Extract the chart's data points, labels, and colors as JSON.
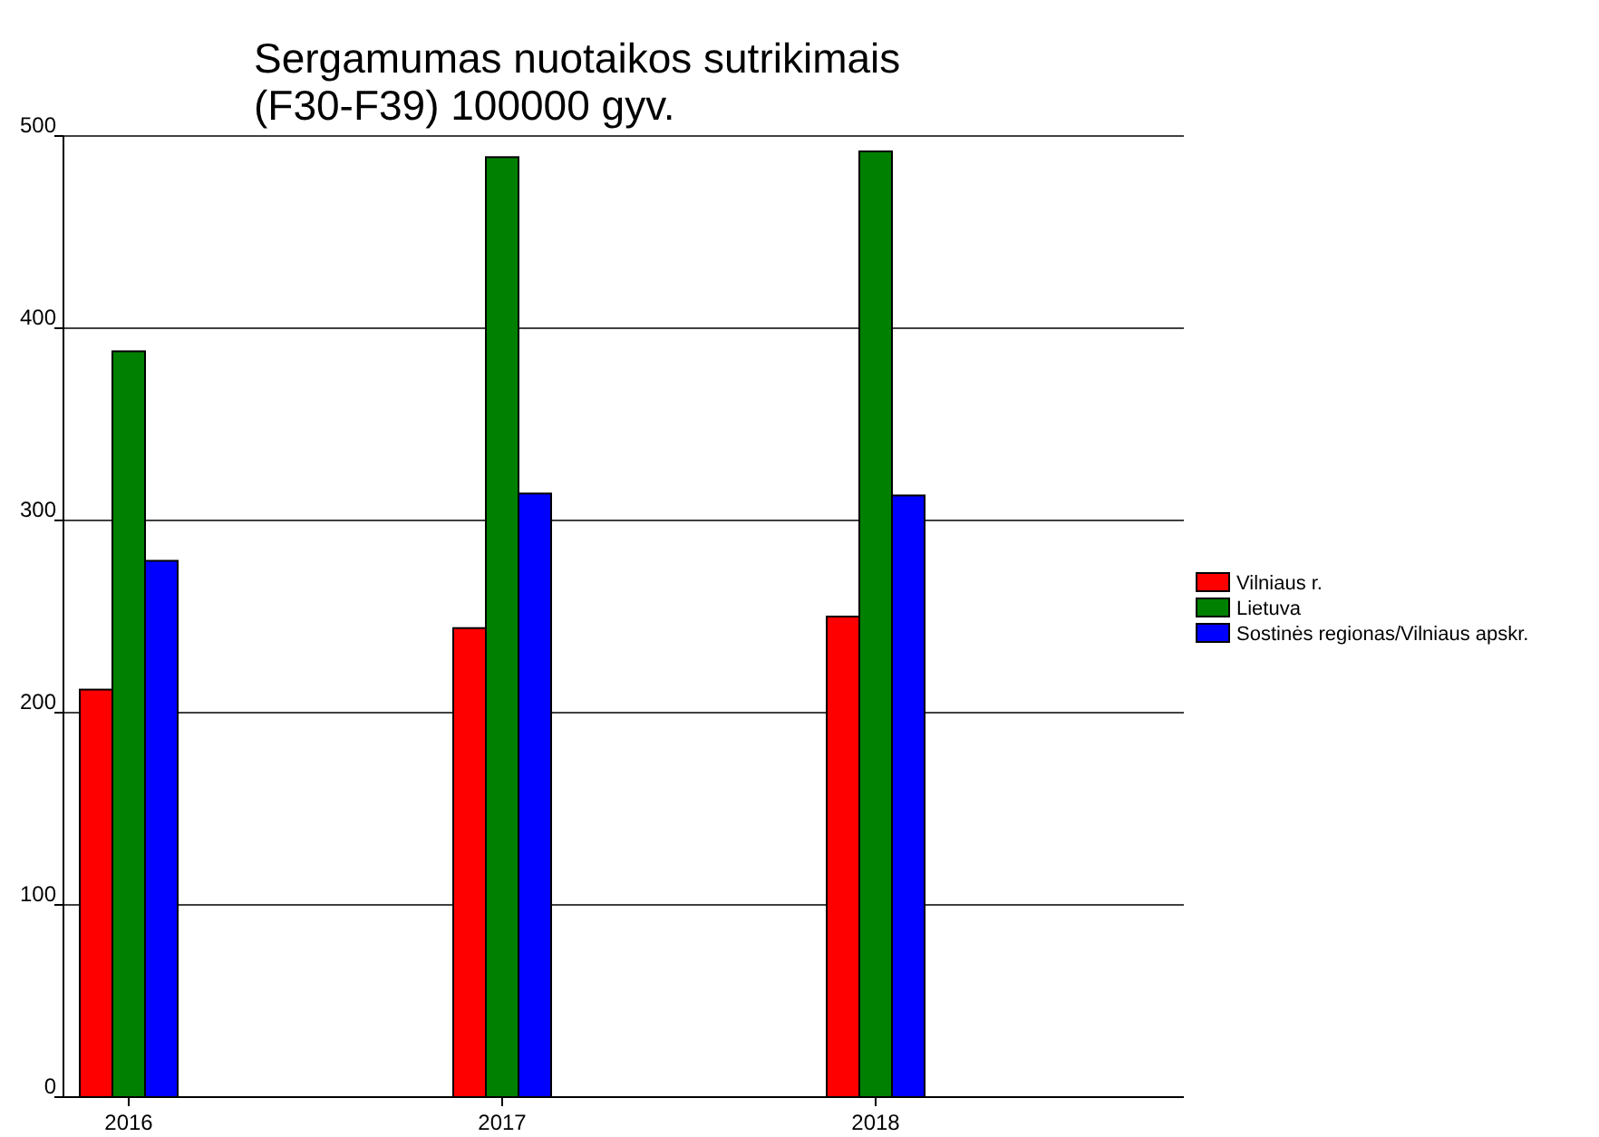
{
  "chart_data": {
    "type": "bar",
    "title": "Sergamumas nuotaikos sutrikimais\n(F30-F39) 100000 gyv.",
    "categories": [
      "2016",
      "2017",
      "2018"
    ],
    "series": [
      {
        "name": "Vilniaus r.",
        "color": "#ff0000",
        "values": [
          212,
          244,
          250
        ]
      },
      {
        "name": "Lietuva",
        "color": "#008000",
        "values": [
          388,
          489,
          492
        ]
      },
      {
        "name": "Sostinės regionas/Vilniaus apskr.",
        "color": "#0000ff",
        "values": [
          279,
          314,
          313
        ]
      }
    ],
    "ylim": [
      0,
      500
    ],
    "yticks": [
      0,
      100,
      200,
      300,
      400,
      500
    ],
    "grid": "y",
    "legend": "right"
  }
}
